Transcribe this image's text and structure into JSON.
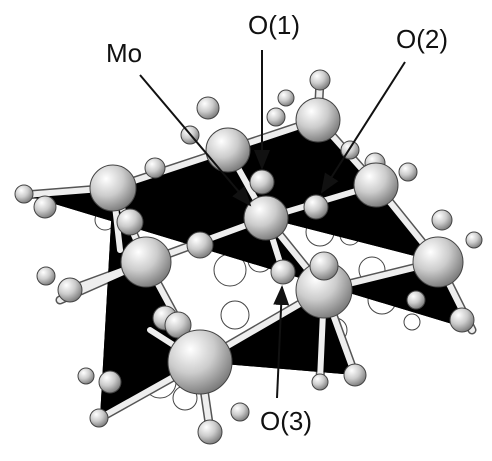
{
  "labels": {
    "mo": "Mo",
    "o1": "O(1)",
    "o2": "O(2)",
    "o3": "O(3)"
  }
}
